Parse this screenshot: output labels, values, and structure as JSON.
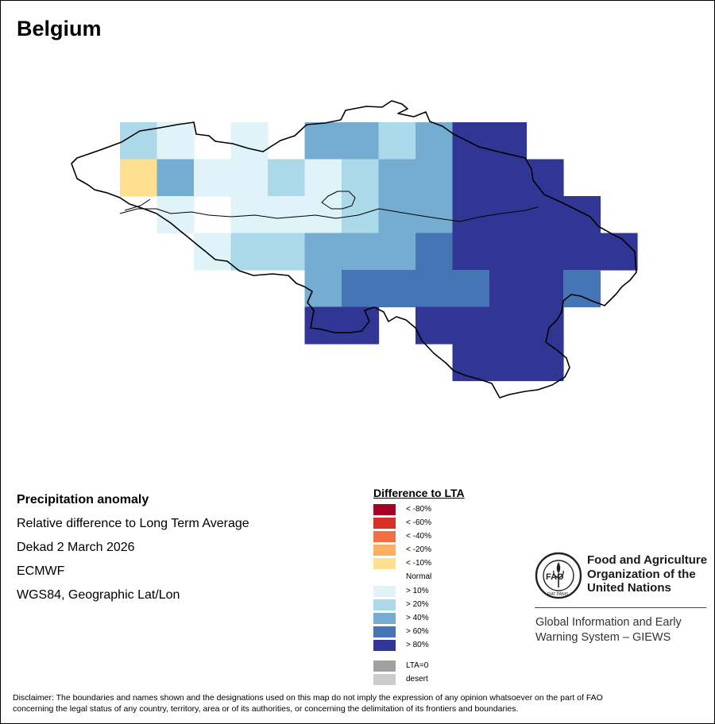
{
  "map": {
    "title": "Belgium",
    "country": "Belgium",
    "info": {
      "product": "Precipitation anomaly",
      "description": "Relative difference to Long Term Average",
      "period": "Dekad 2 March 2026",
      "source": "ECMWF",
      "projection": "WGS84, Geographic Lat/Lon"
    }
  },
  "legend": {
    "title": "Difference to LTA",
    "classes": [
      {
        "label": "< -80%",
        "color": "#a50026"
      },
      {
        "label": "< -60%",
        "color": "#d73027"
      },
      {
        "label": "< -40%",
        "color": "#f46d43"
      },
      {
        "label": "< -20%",
        "color": "#fdae61"
      },
      {
        "label": "< -10%",
        "color": "#fee090"
      },
      {
        "label": "> 10%",
        "color": "#e0f3f8"
      },
      {
        "label": "> 20%",
        "color": "#abd9e9"
      },
      {
        "label": "> 40%",
        "color": "#74add1"
      },
      {
        "label": "> 60%",
        "color": "#4575b4"
      },
      {
        "label": "> 80%",
        "color": "#313695"
      }
    ],
    "normal_label": "Normal",
    "special": [
      {
        "label": "LTA=0",
        "color": "#a0a0a0"
      },
      {
        "label": "desert",
        "color": "#cccccc"
      }
    ]
  },
  "anomaly_grid": {
    "cells": [
      {
        "row": 0,
        "col": 0,
        "class": "> 20%"
      },
      {
        "row": 0,
        "col": 1,
        "class": "> 10%"
      },
      {
        "row": 0,
        "col": 3,
        "class": "> 10%"
      },
      {
        "row": 0,
        "col": 5,
        "class": "> 40%"
      },
      {
        "row": 0,
        "col": 6,
        "class": "> 40%"
      },
      {
        "row": 0,
        "col": 7,
        "class": "> 20%"
      },
      {
        "row": 0,
        "col": 8,
        "class": "> 40%"
      },
      {
        "row": 0,
        "col": 9,
        "class": "> 80%"
      },
      {
        "row": 0,
        "col": 10,
        "class": "> 80%"
      },
      {
        "row": 1,
        "col": 0,
        "class": "< -10%"
      },
      {
        "row": 1,
        "col": 1,
        "class": "> 40%"
      },
      {
        "row": 1,
        "col": 2,
        "class": "> 10%"
      },
      {
        "row": 1,
        "col": 3,
        "class": "> 10%"
      },
      {
        "row": 1,
        "col": 4,
        "class": "> 20%"
      },
      {
        "row": 1,
        "col": 5,
        "class": "> 10%"
      },
      {
        "row": 1,
        "col": 6,
        "class": "> 20%"
      },
      {
        "row": 1,
        "col": 7,
        "class": "> 40%"
      },
      {
        "row": 1,
        "col": 8,
        "class": "> 40%"
      },
      {
        "row": 1,
        "col": 9,
        "class": "> 80%"
      },
      {
        "row": 1,
        "col": 10,
        "class": "> 80%"
      },
      {
        "row": 1,
        "col": 11,
        "class": "> 80%"
      },
      {
        "row": 2,
        "col": 1,
        "class": "> 10%"
      },
      {
        "row": 2,
        "col": 3,
        "class": "> 10%"
      },
      {
        "row": 2,
        "col": 4,
        "class": "> 10%"
      },
      {
        "row": 2,
        "col": 5,
        "class": "> 10%"
      },
      {
        "row": 2,
        "col": 6,
        "class": "> 20%"
      },
      {
        "row": 2,
        "col": 7,
        "class": "> 40%"
      },
      {
        "row": 2,
        "col": 8,
        "class": "> 40%"
      },
      {
        "row": 2,
        "col": 9,
        "class": "> 80%"
      },
      {
        "row": 2,
        "col": 10,
        "class": "> 80%"
      },
      {
        "row": 2,
        "col": 11,
        "class": "> 80%"
      },
      {
        "row": 2,
        "col": 12,
        "class": "> 80%"
      },
      {
        "row": 3,
        "col": 2,
        "class": "> 10%"
      },
      {
        "row": 3,
        "col": 3,
        "class": "> 20%"
      },
      {
        "row": 3,
        "col": 4,
        "class": "> 20%"
      },
      {
        "row": 3,
        "col": 5,
        "class": "> 40%"
      },
      {
        "row": 3,
        "col": 6,
        "class": "> 40%"
      },
      {
        "row": 3,
        "col": 7,
        "class": "> 40%"
      },
      {
        "row": 3,
        "col": 8,
        "class": "> 60%"
      },
      {
        "row": 3,
        "col": 9,
        "class": "> 80%"
      },
      {
        "row": 3,
        "col": 10,
        "class": "> 80%"
      },
      {
        "row": 3,
        "col": 11,
        "class": "> 80%"
      },
      {
        "row": 3,
        "col": 12,
        "class": "> 80%"
      },
      {
        "row": 3,
        "col": 13,
        "class": "> 80%"
      },
      {
        "row": 4,
        "col": 5,
        "class": "> 40%"
      },
      {
        "row": 4,
        "col": 6,
        "class": "> 60%"
      },
      {
        "row": 4,
        "col": 7,
        "class": "> 60%"
      },
      {
        "row": 4,
        "col": 8,
        "class": "> 60%"
      },
      {
        "row": 4,
        "col": 9,
        "class": "> 60%"
      },
      {
        "row": 4,
        "col": 10,
        "class": "> 80%"
      },
      {
        "row": 4,
        "col": 11,
        "class": "> 80%"
      },
      {
        "row": 4,
        "col": 12,
        "class": "> 60%"
      },
      {
        "row": 5,
        "col": 5,
        "class": "> 80%"
      },
      {
        "row": 5,
        "col": 6,
        "class": "> 80%"
      },
      {
        "row": 5,
        "col": 8,
        "class": "> 80%"
      },
      {
        "row": 5,
        "col": 9,
        "class": "> 80%"
      },
      {
        "row": 5,
        "col": 10,
        "class": "> 80%"
      },
      {
        "row": 5,
        "col": 11,
        "class": "> 80%"
      },
      {
        "row": 6,
        "col": 9,
        "class": "> 80%"
      },
      {
        "row": 6,
        "col": 10,
        "class": "> 80%"
      },
      {
        "row": 6,
        "col": 11,
        "class": "> 80%"
      }
    ]
  },
  "organization": {
    "name_line1": "Food and Agriculture",
    "name_line2": "Organization of the",
    "name_line3": "United Nations",
    "logo_text": "FAO",
    "logo_motto": "FIAT PANIS",
    "system_line1": "Global Information and Early",
    "system_line2": "Warning System – GIEWS"
  },
  "disclaimer": {
    "line1": "Disclaimer: The boundaries and names shown and the designations used on this map do not imply the expression of any opinion whatsoever on the part of FAO",
    "line2": "concerning the legal status of any country, territory, area or of its authorities, or concerning the delimitation of its frontiers and boundaries."
  }
}
